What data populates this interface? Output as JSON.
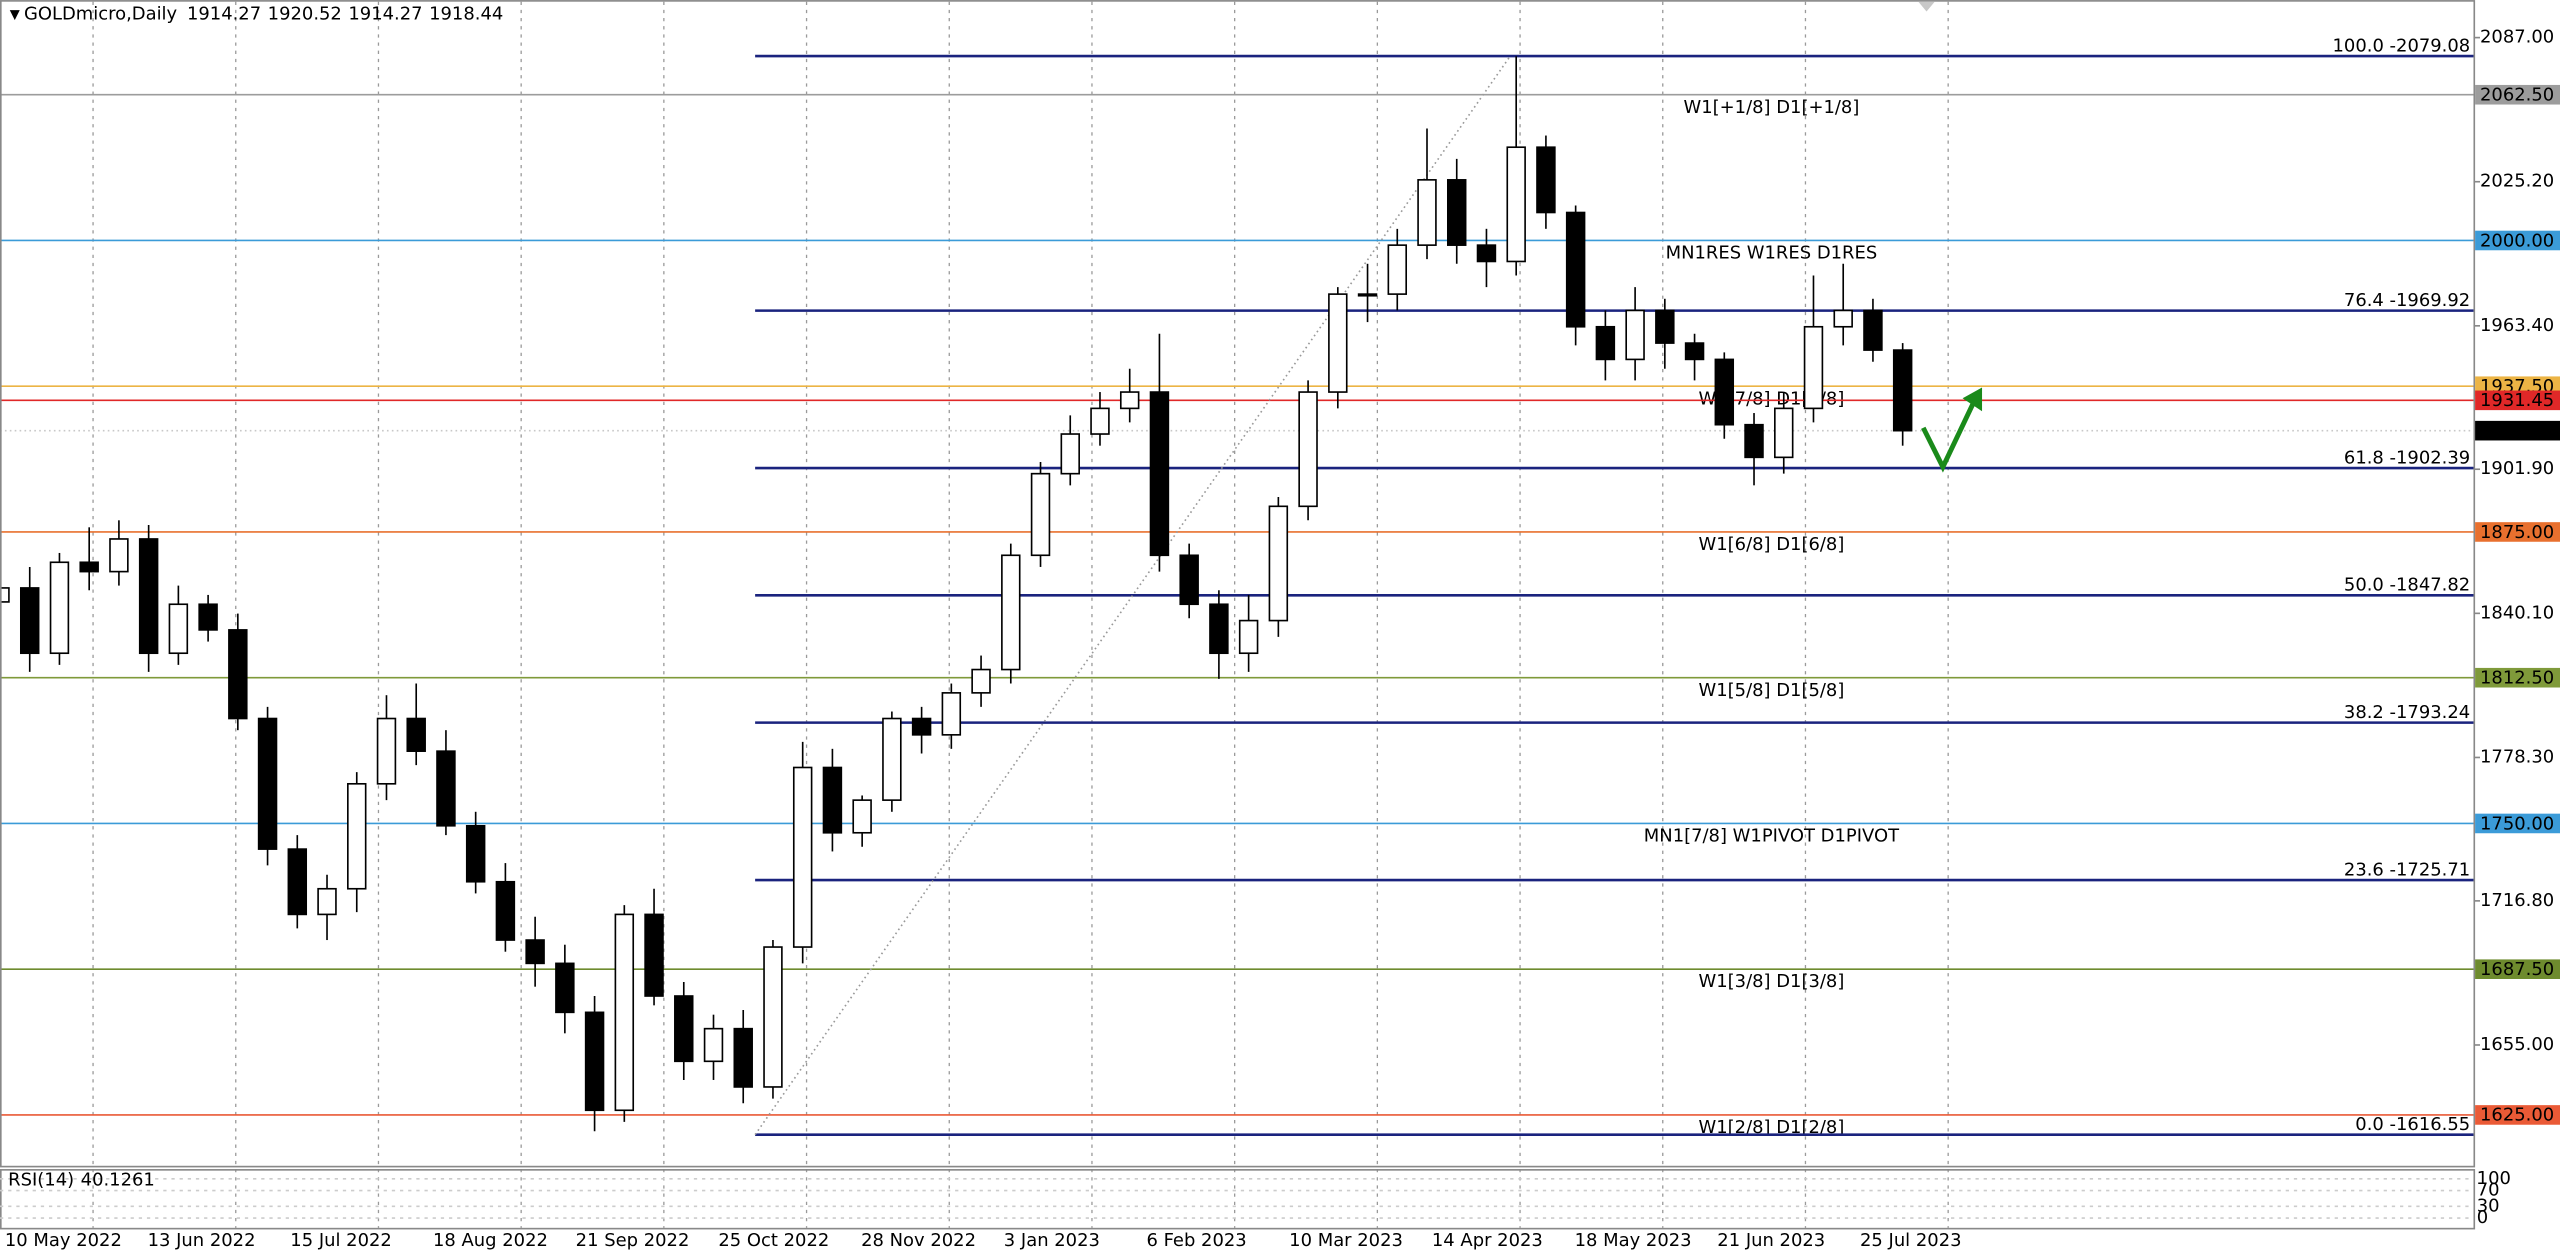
{
  "chart_data": {
    "type": "candlestick",
    "title": "GOLDmicro,Daily",
    "last_ohlc": [
      1914.27,
      1920.52,
      1914.27,
      1918.44
    ],
    "x": [
      0,
      5,
      10,
      15,
      20,
      25,
      30,
      35,
      40,
      45,
      50,
      55,
      60,
      65,
      70,
      75,
      80,
      85,
      90,
      95,
      100,
      105,
      110,
      115,
      120,
      125,
      130,
      135,
      140,
      145,
      150,
      155,
      160,
      165,
      170,
      175,
      180,
      185,
      190,
      195,
      200,
      205,
      210,
      215,
      220,
      225,
      230,
      235,
      240,
      245,
      250,
      255,
      260,
      265,
      270,
      275,
      280,
      285,
      290,
      295,
      300,
      305,
      310,
      315,
      320
    ],
    "open": [
      1845,
      1851,
      1823,
      1862,
      1858,
      1872,
      1823,
      1844,
      1833,
      1795,
      1739,
      1711,
      1722,
      1767,
      1795,
      1781,
      1749,
      1725,
      1700,
      1690,
      1669,
      1627,
      1711,
      1676,
      1648,
      1662,
      1637,
      1697,
      1774,
      1746,
      1760,
      1795,
      1788,
      1806,
      1816,
      1865,
      1900,
      1917,
      1928,
      1935,
      1865,
      1844,
      1823,
      1837,
      1886,
      1935,
      1977,
      1977,
      1998,
      2026,
      1998,
      1991,
      2040,
      2012,
      1963,
      1949,
      1970,
      1956,
      1949,
      1921,
      1907,
      1928,
      1963,
      1970,
      1953
    ],
    "high": [
      1862,
      1860,
      1866,
      1877,
      1880,
      1878,
      1852,
      1848,
      1840,
      1800,
      1745,
      1728,
      1772,
      1805,
      1810,
      1790,
      1755,
      1733,
      1710,
      1698,
      1676,
      1715,
      1722,
      1682,
      1668,
      1670,
      1700,
      1785,
      1782,
      1762,
      1798,
      1800,
      1810,
      1822,
      1870,
      1905,
      1925,
      1935,
      1945,
      1960,
      1870,
      1850,
      1848,
      1890,
      1940,
      1980,
      1990,
      2005,
      2048,
      2035,
      2005,
      2079,
      2045,
      2015,
      1970,
      1980,
      1975,
      1960,
      1952,
      1926,
      1935,
      1985,
      1990,
      1975,
      1956
    ],
    "low": [
      1810,
      1815,
      1818,
      1850,
      1852,
      1815,
      1818,
      1828,
      1790,
      1732,
      1705,
      1700,
      1712,
      1760,
      1775,
      1745,
      1720,
      1695,
      1680,
      1660,
      1618,
      1622,
      1672,
      1640,
      1640,
      1630,
      1632,
      1690,
      1738,
      1740,
      1755,
      1780,
      1782,
      1800,
      1810,
      1860,
      1895,
      1912,
      1922,
      1858,
      1838,
      1812,
      1815,
      1830,
      1880,
      1928,
      1965,
      1970,
      1992,
      1990,
      1980,
      1985,
      2005,
      1955,
      1940,
      1940,
      1945,
      1940,
      1915,
      1895,
      1900,
      1922,
      1955,
      1948,
      1912
    ],
    "close": [
      1851,
      1823,
      1862,
      1858,
      1872,
      1823,
      1844,
      1833,
      1795,
      1739,
      1711,
      1722,
      1767,
      1795,
      1781,
      1749,
      1725,
      1700,
      1690,
      1669,
      1627,
      1711,
      1676,
      1648,
      1662,
      1637,
      1697,
      1774,
      1746,
      1760,
      1795,
      1788,
      1806,
      1816,
      1865,
      1900,
      1917,
      1928,
      1935,
      1865,
      1844,
      1823,
      1837,
      1886,
      1935,
      1977,
      1977,
      1998,
      2026,
      1998,
      1991,
      2040,
      2012,
      1963,
      1949,
      1970,
      1956,
      1949,
      1921,
      1907,
      1928,
      1963,
      1970,
      1953,
      1918.44
    ],
    "xlim": [
      0,
      416
    ],
    "ylim": [
      1603.2,
      2103.1
    ],
    "xticks": [
      {
        "value": 0,
        "label": "10 May 2022"
      },
      {
        "value": 24,
        "label": "13 Jun 2022"
      },
      {
        "value": 48,
        "label": "15 Jul 2022"
      },
      {
        "value": 72,
        "label": "18 Aug 2022"
      },
      {
        "value": 96,
        "label": "21 Sep 2022"
      },
      {
        "value": 120,
        "label": "25 Oct 2022"
      },
      {
        "value": 144,
        "label": "28 Nov 2022"
      },
      {
        "value": 168,
        "label": "3 Jan 2023"
      },
      {
        "value": 192,
        "label": "6 Feb 2023"
      },
      {
        "value": 216,
        "label": "10 Mar 2023"
      },
      {
        "value": 240,
        "label": "14 Apr 2023"
      },
      {
        "value": 264,
        "label": "18 May 2023"
      },
      {
        "value": 288,
        "label": "21 Jun 2023"
      },
      {
        "value": 312,
        "label": "25 Jul 2023"
      }
    ],
    "yticks": [
      {
        "value": 2087,
        "label": "2087.00"
      },
      {
        "value": 2025.2,
        "label": "2025.20"
      },
      {
        "value": 1963.4,
        "label": "1963.40"
      },
      {
        "value": 1901.9,
        "label": "1901.90"
      },
      {
        "value": 1840.1,
        "label": "1840.10"
      },
      {
        "value": 1778.3,
        "label": "1778.30"
      },
      {
        "value": 1716.8,
        "label": "1716.80"
      },
      {
        "value": 1655,
        "label": "1655.00"
      }
    ],
    "grid": true,
    "levels": [
      {
        "value": 2062.5,
        "label": "2062.50",
        "color": "#9c9c9c",
        "text": "W1[+1/8] D1[+1/8]"
      },
      {
        "value": 2000,
        "label": "2000.00",
        "color": "#3b9bd8",
        "text": "MN1RES W1RES D1RES"
      },
      {
        "value": 1937.5,
        "label": "1937.50",
        "color": "#ecb445",
        "text": "W1[7/8] D1[7/8]"
      },
      {
        "value": 1931.45,
        "label": "1931.45",
        "color": "#e02828"
      },
      {
        "value": 1875,
        "label": "1875.00",
        "color": "#e8702e",
        "text": "W1[6/8] D1[6/8]"
      },
      {
        "value": 1812.5,
        "label": "1812.50",
        "color": "#7f9a3a",
        "text": "W1[5/8] D1[5/8]"
      },
      {
        "value": 1750,
        "label": "1750.00",
        "color": "#3b9bd8",
        "text": "MN1[7/8] W1PIVOT D1PIVOT"
      },
      {
        "value": 1687.5,
        "label": "1687.50",
        "color": "#6e8b2e",
        "text": "W1[3/8] D1[3/8]"
      },
      {
        "value": 1625,
        "label": "1625.00",
        "color": "#ea5a36",
        "text": "W1[2/8] D1[2/8]"
      }
    ],
    "current_price": {
      "value": 1918.44,
      "label": "1918.44"
    },
    "fibonacci": {
      "color": "#1a237e",
      "levels": [
        {
          "value": 2079.08,
          "label": "100.0 -2079.08"
        },
        {
          "value": 1969.92,
          "label": "76.4 -1969.92"
        },
        {
          "value": 1902.39,
          "label": "61.8 -1902.39"
        },
        {
          "value": 1847.82,
          "label": "50.0 -1847.82"
        },
        {
          "value": 1793.24,
          "label": "38.2 -1793.24"
        },
        {
          "value": 1725.71,
          "label": "23.6 -1725.71"
        },
        {
          "value": 1616.55,
          "label": "0.0 -1616.55"
        }
      ]
    },
    "indicator": {
      "name": "RSI(14)",
      "value": 40.1261,
      "ylim": [
        0,
        100
      ],
      "yticks": [
        100,
        70,
        30,
        0
      ]
    }
  }
}
